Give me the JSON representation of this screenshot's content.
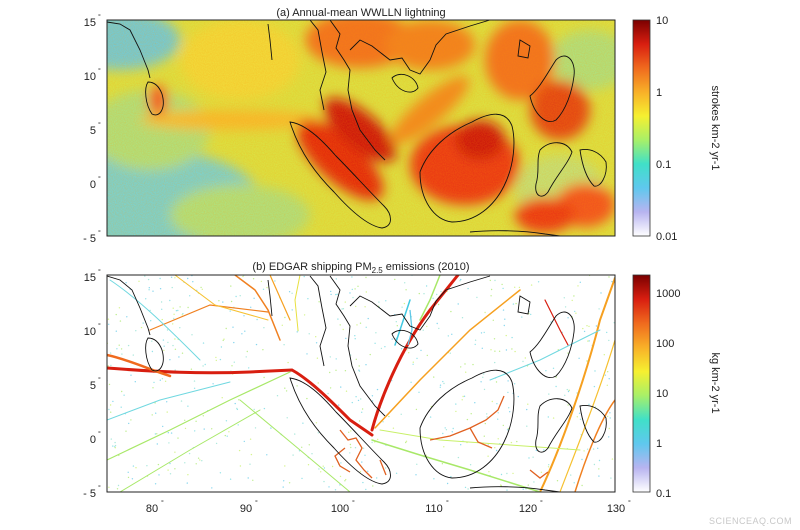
{
  "panel_a": {
    "title": "(a) Annual-mean WWLLN lightning",
    "y_ticks": [
      "15",
      "10",
      "5",
      "0",
      "- 5"
    ],
    "colorbar_ticks": [
      "10",
      "1",
      "0.1",
      "0.01"
    ],
    "colorbar_label": "strokes km-2 yr-1",
    "colormap": [
      "#ffffff",
      "#b8b4f0",
      "#5fc8ee",
      "#40e0c8",
      "#a8f068",
      "#f6f030",
      "#f8b028",
      "#f06a1e",
      "#d81e10",
      "#7a0000"
    ]
  },
  "panel_b": {
    "title_main": "(b) EDGAR shipping PM",
    "title_sub": "2.5",
    "title_end": " emissions (2010)",
    "y_ticks": [
      "15",
      "10",
      "5",
      "0",
      "- 5"
    ],
    "x_ticks": [
      "80",
      "90",
      "100",
      "110",
      "120",
      "130"
    ],
    "colorbar_ticks": [
      "1000",
      "100",
      "10",
      "1",
      "0.1"
    ],
    "colorbar_label": "kg km-2 yr-1",
    "colormap": [
      "#ffffff",
      "#b8b4f0",
      "#5fc8ee",
      "#40e0c8",
      "#a8f068",
      "#f6f030",
      "#f8b028",
      "#f06a1e",
      "#d81e10",
      "#7a0000"
    ]
  },
  "watermark": "SCIENCEAQ.COM"
}
